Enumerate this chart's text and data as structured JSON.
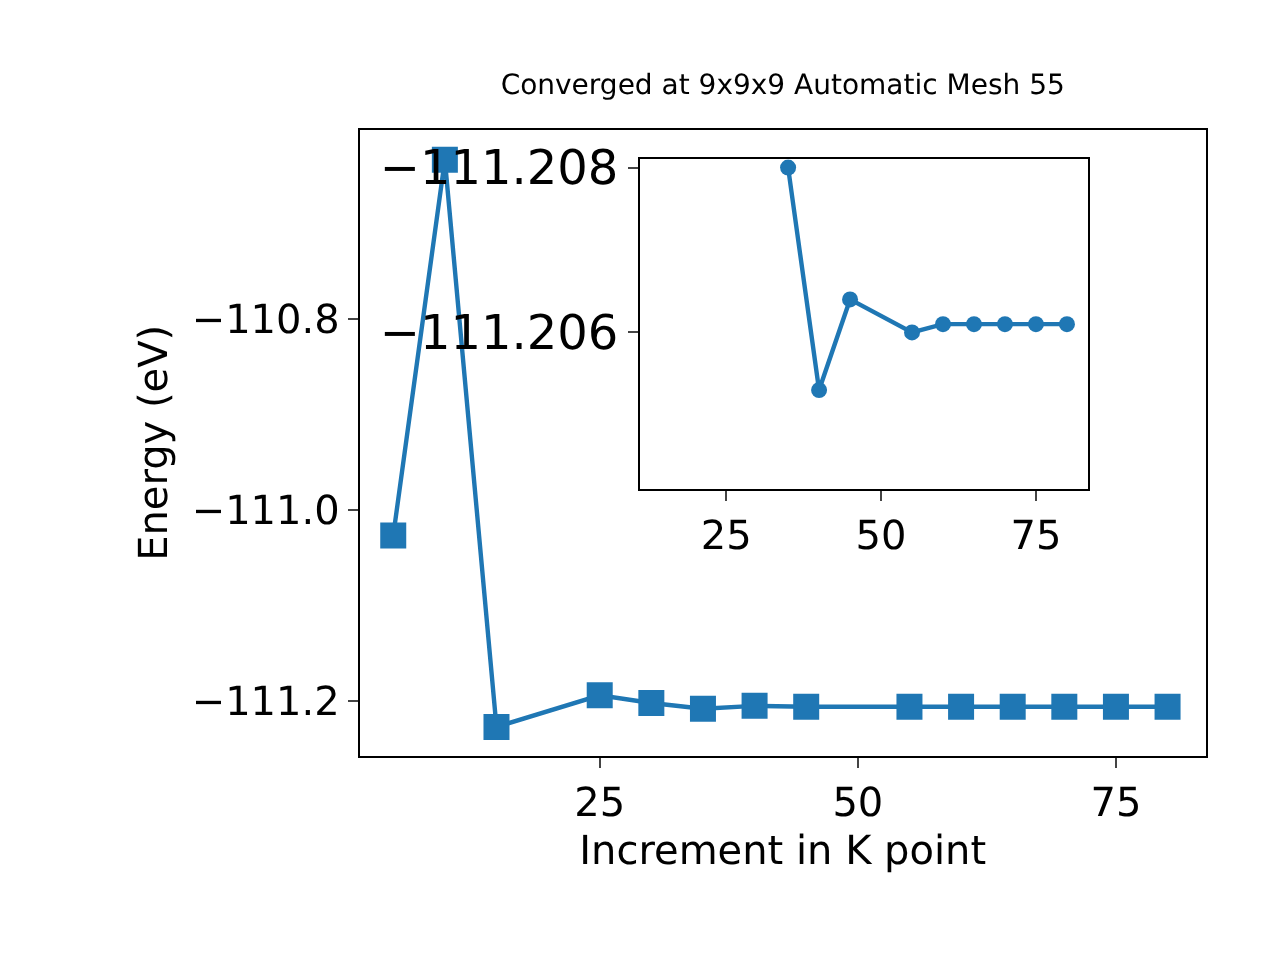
{
  "chart_data": [
    {
      "type": "line",
      "title": "Converged at 9x9x9 Automatic Mesh 55",
      "xlabel": "Increment in K point",
      "ylabel": "Energy (eV)",
      "x": [
        5,
        10,
        15,
        25,
        30,
        35,
        40,
        45,
        55,
        60,
        65,
        70,
        75,
        80
      ],
      "series": [
        {
          "color": "#1f77b4",
          "values": [
            -111.027,
            -110.634,
            -111.227,
            -111.194,
            -111.202,
            -111.208,
            -111.205,
            -111.206,
            -111.206,
            -111.206,
            -111.206,
            -111.206,
            -111.206,
            -111.206
          ]
        }
      ],
      "xlim": [
        1.75,
        83.7
      ],
      "ylim": [
        -111.257,
        -110.603
      ],
      "xticks": [
        25,
        50,
        75
      ],
      "yticks": [
        -111.2,
        {
          "value": -111.0,
          "label": "−111.0"
        },
        -110.8
      ],
      "marker": "square",
      "line_style": "solid"
    },
    {
      "type": "line",
      "x": [
        35,
        40,
        45,
        55,
        60,
        65,
        70,
        75,
        80
      ],
      "series": [
        {
          "color": "#1f77b4",
          "values": [
            -111.208,
            -111.2053,
            -111.2064,
            -111.206,
            -111.2061,
            -111.2061,
            -111.2061,
            -111.2061,
            -111.2061
          ]
        }
      ],
      "xlim": [
        11.1,
        83.4
      ],
      "ylim": [
        -111.2041,
        -111.2081
      ],
      "xticks": [
        25,
        50,
        75
      ],
      "yticks": [
        -111.208,
        -111.206
      ],
      "marker": "circle",
      "line_style": "solid"
    }
  ]
}
